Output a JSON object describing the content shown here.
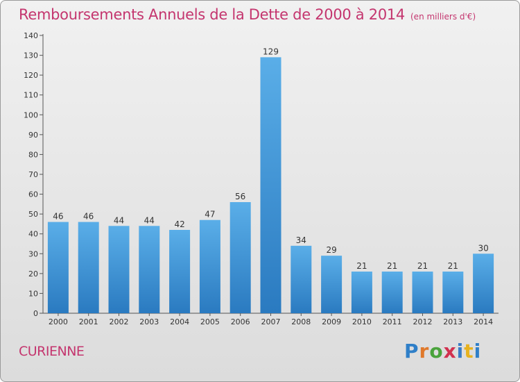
{
  "title": "Remboursements Annuels de la Dette de 2000 à 2014",
  "subtitle": "(en milliers d'€)",
  "commune": "CURIENNE",
  "logo": {
    "letters": [
      "P",
      "r",
      "o",
      "x",
      "i",
      "t",
      "i"
    ]
  },
  "colors": {
    "title": "#c4356e",
    "bar_top": "#5aaee8",
    "bar_bottom": "#2a7ac0"
  },
  "chart_data": {
    "type": "bar",
    "title": "Remboursements Annuels de la Dette de 2000 à 2014",
    "xlabel": "",
    "ylabel": "",
    "categories": [
      "2000",
      "2001",
      "2002",
      "2003",
      "2004",
      "2005",
      "2006",
      "2007",
      "2008",
      "2009",
      "2010",
      "2011",
      "2012",
      "2013",
      "2014"
    ],
    "values": [
      46,
      46,
      44,
      44,
      42,
      47,
      56,
      129,
      34,
      29,
      21,
      21,
      21,
      21,
      30
    ],
    "ylim": [
      0,
      140
    ],
    "yticks": [
      0,
      10,
      20,
      30,
      40,
      50,
      60,
      70,
      80,
      90,
      100,
      110,
      120,
      130,
      140
    ],
    "grid": false,
    "data_labels": true,
    "legend": "none"
  }
}
